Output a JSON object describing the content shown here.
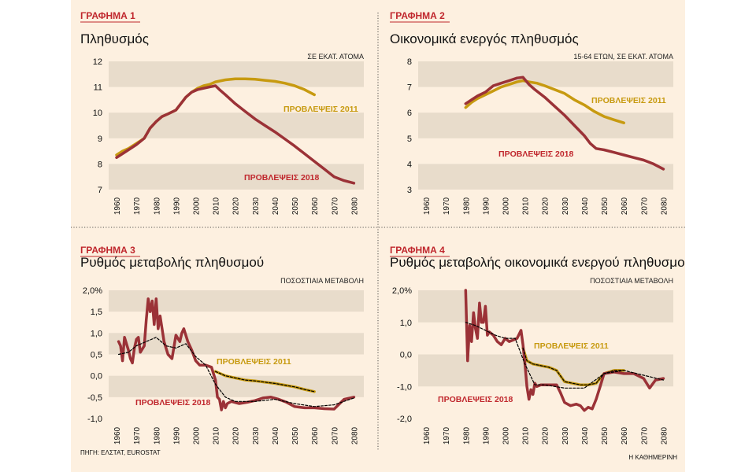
{
  "colors": {
    "brown": "#9b3237",
    "gold": "#c79a10",
    "band": "#e8dccb",
    "label_red": "#c0272d",
    "dashed": "#000000",
    "background": "#fdf0e0"
  },
  "footer": {
    "source": "ΠΗΓΗ: ΕΛΣΤΑΤ, EUROSTAT",
    "brand": "Η ΚΑΘΗΜΕΡΙΝΗ"
  },
  "chart_data": [
    {
      "type": "line",
      "tag": "ΓΡΑΦΗΜΑ 1",
      "title": "Πληθυσμός",
      "unit": "ΣΕ ΕΚΑΤ. ΑΤΟΜΑ",
      "x_ticks": [
        "1960",
        "1970",
        "1980",
        "1990",
        "2000",
        "2010",
        "2020",
        "2030",
        "2040",
        "2050",
        "2060",
        "2070",
        "2080"
      ],
      "xlim": [
        1956,
        2085
      ],
      "ylim": [
        7,
        12
      ],
      "y_ticks": [
        {
          "v": 7,
          "label": "7"
        },
        {
          "v": 8,
          "label": "8"
        },
        {
          "v": 9,
          "label": "9"
        },
        {
          "v": 10,
          "label": "10"
        },
        {
          "v": 11,
          "label": "11"
        },
        {
          "v": 12,
          "label": "12"
        }
      ],
      "bands": [
        [
          11,
          12
        ],
        [
          9,
          10
        ],
        [
          7,
          8
        ]
      ],
      "series": [
        {
          "name": "ΠΡΟΒΛΕΨΕΙΣ 2011",
          "color": "gold",
          "x": [
            1960,
            1963,
            1966,
            1970,
            1974,
            1977,
            1980,
            1983,
            1986,
            1990,
            1992,
            1995,
            1998,
            2001,
            2004,
            2007,
            2010,
            2015,
            2020,
            2025,
            2030,
            2035,
            2040,
            2045,
            2050,
            2055,
            2060
          ],
          "y": [
            8.35,
            8.5,
            8.6,
            8.8,
            9.0,
            9.4,
            9.65,
            9.85,
            9.95,
            10.1,
            10.3,
            10.6,
            10.8,
            10.95,
            11.05,
            11.1,
            11.2,
            11.28,
            11.32,
            11.32,
            11.3,
            11.26,
            11.22,
            11.15,
            11.05,
            10.9,
            10.7
          ]
        },
        {
          "name": "ΠΡΟΒΛΕΨΕΙΣ 2018",
          "color": "brown",
          "x": [
            1960,
            1963,
            1966,
            1970,
            1974,
            1977,
            1980,
            1983,
            1986,
            1990,
            1992,
            1995,
            1998,
            2001,
            2004,
            2007,
            2010,
            2012,
            2015,
            2020,
            2025,
            2030,
            2035,
            2040,
            2045,
            2050,
            2055,
            2060,
            2065,
            2070,
            2075,
            2080
          ],
          "y": [
            8.25,
            8.4,
            8.55,
            8.75,
            9.0,
            9.4,
            9.65,
            9.85,
            9.95,
            10.1,
            10.3,
            10.6,
            10.8,
            10.9,
            10.95,
            11.0,
            11.05,
            10.9,
            10.7,
            10.35,
            10.05,
            9.75,
            9.5,
            9.25,
            8.98,
            8.7,
            8.4,
            8.1,
            7.8,
            7.5,
            7.35,
            7.25
          ]
        }
      ],
      "labels": [
        {
          "text": "ΠΡΟΒΛΕΨΕΙΣ 2011",
          "color": "gold"
        },
        {
          "text": "ΠΡΟΒΛΕΨΕΙΣ 2018",
          "color": "label_red"
        }
      ]
    },
    {
      "type": "line",
      "tag": "ΓΡΑΦΗΜΑ 2",
      "title": "Οικονομικά ενεργός πληθυσμός",
      "unit": "15-64 ΕΤΩΝ, ΣΕ ΕΚΑΤ. ΑΤΟΜΑ",
      "x_ticks": [
        "1960",
        "1970",
        "1980",
        "1990",
        "2000",
        "2010",
        "2020",
        "2030",
        "2040",
        "2050",
        "2060",
        "2070",
        "2080"
      ],
      "xlim": [
        1956,
        2085
      ],
      "ylim": [
        3,
        8
      ],
      "y_ticks": [
        {
          "v": 3,
          "label": "3"
        },
        {
          "v": 4,
          "label": "4"
        },
        {
          "v": 5,
          "label": "5"
        },
        {
          "v": 6,
          "label": "6"
        },
        {
          "v": 7,
          "label": "7"
        },
        {
          "v": 8,
          "label": "8"
        }
      ],
      "bands": [
        [
          7,
          8
        ],
        [
          5,
          6
        ],
        [
          3,
          4
        ]
      ],
      "series": [
        {
          "name": "ΠΡΟΒΛΕΨΕΙΣ 2011",
          "color": "gold",
          "x": [
            1980,
            1983,
            1986,
            1990,
            1994,
            1998,
            2002,
            2006,
            2009,
            2012,
            2016,
            2020,
            2025,
            2030,
            2035,
            2040,
            2045,
            2050,
            2055,
            2060
          ],
          "y": [
            6.2,
            6.4,
            6.55,
            6.7,
            6.85,
            7.0,
            7.1,
            7.2,
            7.25,
            7.2,
            7.15,
            7.05,
            6.9,
            6.75,
            6.5,
            6.3,
            6.05,
            5.85,
            5.72,
            5.6
          ]
        },
        {
          "name": "ΠΡΟΒΛΕΨΕΙΣ 2018",
          "color": "brown",
          "x": [
            1980,
            1983,
            1986,
            1990,
            1994,
            1998,
            2002,
            2006,
            2009,
            2012,
            2015,
            2020,
            2025,
            2030,
            2035,
            2040,
            2043,
            2046,
            2050,
            2055,
            2060,
            2065,
            2070,
            2075,
            2080
          ],
          "y": [
            6.35,
            6.5,
            6.65,
            6.8,
            7.05,
            7.15,
            7.25,
            7.35,
            7.38,
            7.1,
            6.9,
            6.6,
            6.25,
            5.9,
            5.5,
            5.1,
            4.8,
            4.6,
            4.55,
            4.45,
            4.35,
            4.25,
            4.15,
            4.0,
            3.8
          ]
        }
      ],
      "labels": [
        {
          "text": "ΠΡΟΒΛΕΨΕΙΣ 2011",
          "color": "gold"
        },
        {
          "text": "ΠΡΟΒΛΕΨΕΙΣ 2018",
          "color": "label_red"
        }
      ]
    },
    {
      "type": "line",
      "tag": "ΓΡΑΦΗΜΑ 3",
      "title": "Ρυθμός μεταβολής πληθυσμού",
      "unit": "ΠΟΣΟΣΤΙΑΙΑ ΜΕΤΑΒΟΛΗ",
      "x_ticks": [
        "1960",
        "1970",
        "1980",
        "1990",
        "2000",
        "2010",
        "2020",
        "2030",
        "2040",
        "2050",
        "2060",
        "2070",
        "2080"
      ],
      "xlim": [
        1956,
        2085
      ],
      "ylim": [
        -1.0,
        2.0
      ],
      "y_ticks": [
        {
          "v": 2.0,
          "label": "2,0%"
        },
        {
          "v": 1.5,
          "label": "1,5"
        },
        {
          "v": 1.0,
          "label": "1,0"
        },
        {
          "v": 0.5,
          "label": "0,5"
        },
        {
          "v": 0.0,
          "label": "0,0"
        },
        {
          "v": -0.5,
          "label": "-0,5"
        },
        {
          "v": -1.0,
          "label": "-1,0"
        }
      ],
      "bands": [
        [
          1.5,
          2.0
        ],
        [
          0.5,
          1.0
        ],
        [
          -0.5,
          0.0
        ]
      ],
      "series": [
        {
          "name": "ΠΡΟΒΛΕΨΕΙΣ 2011",
          "color": "gold",
          "x": [
            2010,
            2015,
            2020,
            2025,
            2030,
            2035,
            2040,
            2045,
            2050,
            2055,
            2060
          ],
          "y": [
            0.1,
            0.0,
            -0.05,
            -0.1,
            -0.12,
            -0.15,
            -0.18,
            -0.22,
            -0.26,
            -0.32,
            -0.37
          ]
        },
        {
          "name": "ΠΡΟΒΛΕΨΕΙΣ 2018",
          "color": "brown",
          "x": [
            1961,
            1962,
            1963,
            1964,
            1966,
            1967,
            1968,
            1969,
            1970,
            1971,
            1972,
            1974,
            1975,
            1976,
            1977,
            1978,
            1979,
            1980,
            1981,
            1982,
            1984,
            1986,
            1988,
            1990,
            1992,
            1993,
            1994,
            1996,
            1998,
            2000,
            2002,
            2005,
            2008,
            2010,
            2011,
            2012,
            2013,
            2014,
            2015,
            2016,
            2018,
            2022,
            2026,
            2030,
            2034,
            2038,
            2042,
            2046,
            2050,
            2055,
            2060,
            2065,
            2070,
            2075,
            2080
          ],
          "y": [
            0.8,
            0.7,
            0.35,
            0.9,
            0.6,
            0.4,
            0.3,
            0.65,
            0.85,
            0.9,
            0.55,
            0.7,
            1.3,
            1.8,
            1.5,
            1.75,
            1.2,
            1.8,
            1.1,
            1.4,
            0.8,
            0.5,
            0.4,
            0.95,
            0.8,
            1.0,
            1.1,
            0.8,
            0.6,
            0.35,
            0.25,
            0.25,
            0.2,
            -0.1,
            -0.5,
            -0.55,
            -0.8,
            -0.6,
            -0.75,
            -0.65,
            -0.6,
            -0.65,
            -0.62,
            -0.58,
            -0.52,
            -0.5,
            -0.55,
            -0.62,
            -0.72,
            -0.75,
            -0.75,
            -0.77,
            -0.78,
            -0.55,
            -0.5
          ]
        },
        {
          "name": "dashed",
          "color": "dashed",
          "dashed": true,
          "x": [
            1961,
            1966,
            1970,
            1975,
            1980,
            1985,
            1990,
            1995,
            2000,
            2005,
            2010,
            2015,
            2020,
            2030,
            2040,
            2050,
            2060,
            2070,
            2080
          ],
          "y": [
            0.5,
            0.55,
            0.7,
            0.8,
            0.9,
            0.7,
            0.65,
            0.75,
            0.45,
            0.25,
            -0.2,
            -0.5,
            -0.6,
            -0.6,
            -0.55,
            -0.65,
            -0.72,
            -0.68,
            -0.52
          ]
        },
        {
          "name": "dashed2011",
          "color": "dashed",
          "dashed": true,
          "x": [
            2010,
            2015,
            2020,
            2025,
            2030,
            2035,
            2040,
            2045,
            2050,
            2055,
            2060
          ],
          "y": [
            0.1,
            0.0,
            -0.05,
            -0.1,
            -0.12,
            -0.15,
            -0.18,
            -0.22,
            -0.26,
            -0.32,
            -0.37
          ]
        }
      ],
      "labels": [
        {
          "text": "ΠΡΟΒΛΕΨΕΙΣ 2011",
          "color": "gold"
        },
        {
          "text": "ΠΡΟΒΛΕΨΕΙΣ 2018",
          "color": "label_red"
        }
      ]
    },
    {
      "type": "line",
      "tag": "ΓΡΑΦΗΜΑ 4",
      "title": "Ρυθμός μεταβολής οικονομικά ενεργού πληθυσμού",
      "unit": "ΠΟΣΟΣΤΙΑΙΑ ΜΕΤΑΒΟΛΗ",
      "x_ticks": [
        "1960",
        "1970",
        "1980",
        "1990",
        "2000",
        "2010",
        "2020",
        "2030",
        "2040",
        "2050",
        "2060",
        "2070",
        "2080"
      ],
      "xlim": [
        1956,
        2085
      ],
      "ylim": [
        -2.0,
        2.0
      ],
      "y_ticks": [
        {
          "v": 2.0,
          "label": "2,0%"
        },
        {
          "v": 1.0,
          "label": "1,0"
        },
        {
          "v": 0.0,
          "label": "0,0"
        },
        {
          "v": -1.0,
          "label": "-1,0"
        },
        {
          "v": -2.0,
          "label": "-2,0"
        }
      ],
      "bands": [
        [
          1.0,
          2.0
        ],
        [
          -1.0,
          0.0
        ]
      ],
      "series": [
        {
          "name": "ΠΡΟΒΛΕΨΕΙΣ 2011",
          "color": "gold",
          "x": [
            2009,
            2011,
            2014,
            2018,
            2022,
            2026,
            2030,
            2034,
            2038,
            2042,
            2046,
            2050,
            2055,
            2060
          ],
          "y": [
            0.2,
            -0.2,
            -0.3,
            -0.35,
            -0.4,
            -0.5,
            -0.85,
            -0.9,
            -0.95,
            -0.95,
            -0.9,
            -0.6,
            -0.5,
            -0.5
          ]
        },
        {
          "name": "ΠΡΟΒΛΕΨΕΙΣ 2018",
          "color": "brown",
          "x": [
            1980,
            1981,
            1982,
            1983,
            1984,
            1985,
            1986,
            1987,
            1988,
            1989,
            1990,
            1991,
            1992,
            1994,
            1996,
            1998,
            2000,
            2002,
            2004,
            2006,
            2008,
            2009,
            2010,
            2011,
            2012,
            2013,
            2014,
            2015,
            2016,
            2018,
            2022,
            2026,
            2028,
            2030,
            2033,
            2036,
            2038,
            2040,
            2042,
            2044,
            2046,
            2048,
            2050,
            2055,
            2060,
            2065,
            2070,
            2073,
            2076,
            2080
          ],
          "y": [
            2.0,
            -0.2,
            0.9,
            0.4,
            1.3,
            0.8,
            0.5,
            1.6,
            1.0,
            1.0,
            1.5,
            0.6,
            0.7,
            0.6,
            0.4,
            0.3,
            0.5,
            0.4,
            0.45,
            0.5,
            0.75,
            0.3,
            -0.3,
            -1.0,
            -1.4,
            -1.1,
            -1.25,
            -0.9,
            -1.0,
            -0.95,
            -0.95,
            -0.95,
            -1.2,
            -1.5,
            -1.6,
            -1.55,
            -1.6,
            -1.75,
            -1.65,
            -1.7,
            -1.4,
            -1.0,
            -0.6,
            -0.55,
            -0.6,
            -0.6,
            -0.75,
            -1.05,
            -0.8,
            -0.75
          ]
        },
        {
          "name": "dashed",
          "color": "dashed",
          "dashed": true,
          "x": [
            1980,
            1985,
            1990,
            1995,
            2000,
            2005,
            2010,
            2015,
            2020,
            2030,
            2040,
            2050,
            2060,
            2070,
            2080
          ],
          "y": [
            1.0,
            0.9,
            0.75,
            0.6,
            0.5,
            0.5,
            -0.3,
            -0.95,
            -0.95,
            -1.05,
            -1.05,
            -0.6,
            -0.5,
            -0.65,
            -0.8
          ]
        },
        {
          "name": "dashed2011",
          "color": "dashed",
          "dashed": true,
          "x": [
            2009,
            2011,
            2014,
            2018,
            2022,
            2026,
            2030,
            2034,
            2038,
            2042,
            2046,
            2050,
            2055,
            2060
          ],
          "y": [
            0.2,
            -0.2,
            -0.3,
            -0.35,
            -0.4,
            -0.5,
            -0.85,
            -0.9,
            -0.95,
            -0.95,
            -0.9,
            -0.6,
            -0.5,
            -0.5
          ]
        }
      ],
      "labels": [
        {
          "text": "ΠΡΟΒΛΕΨΕΙΣ 2011",
          "color": "gold"
        },
        {
          "text": "ΠΡΟΒΛΕΨΕΙΣ 2018",
          "color": "label_red"
        }
      ]
    }
  ]
}
